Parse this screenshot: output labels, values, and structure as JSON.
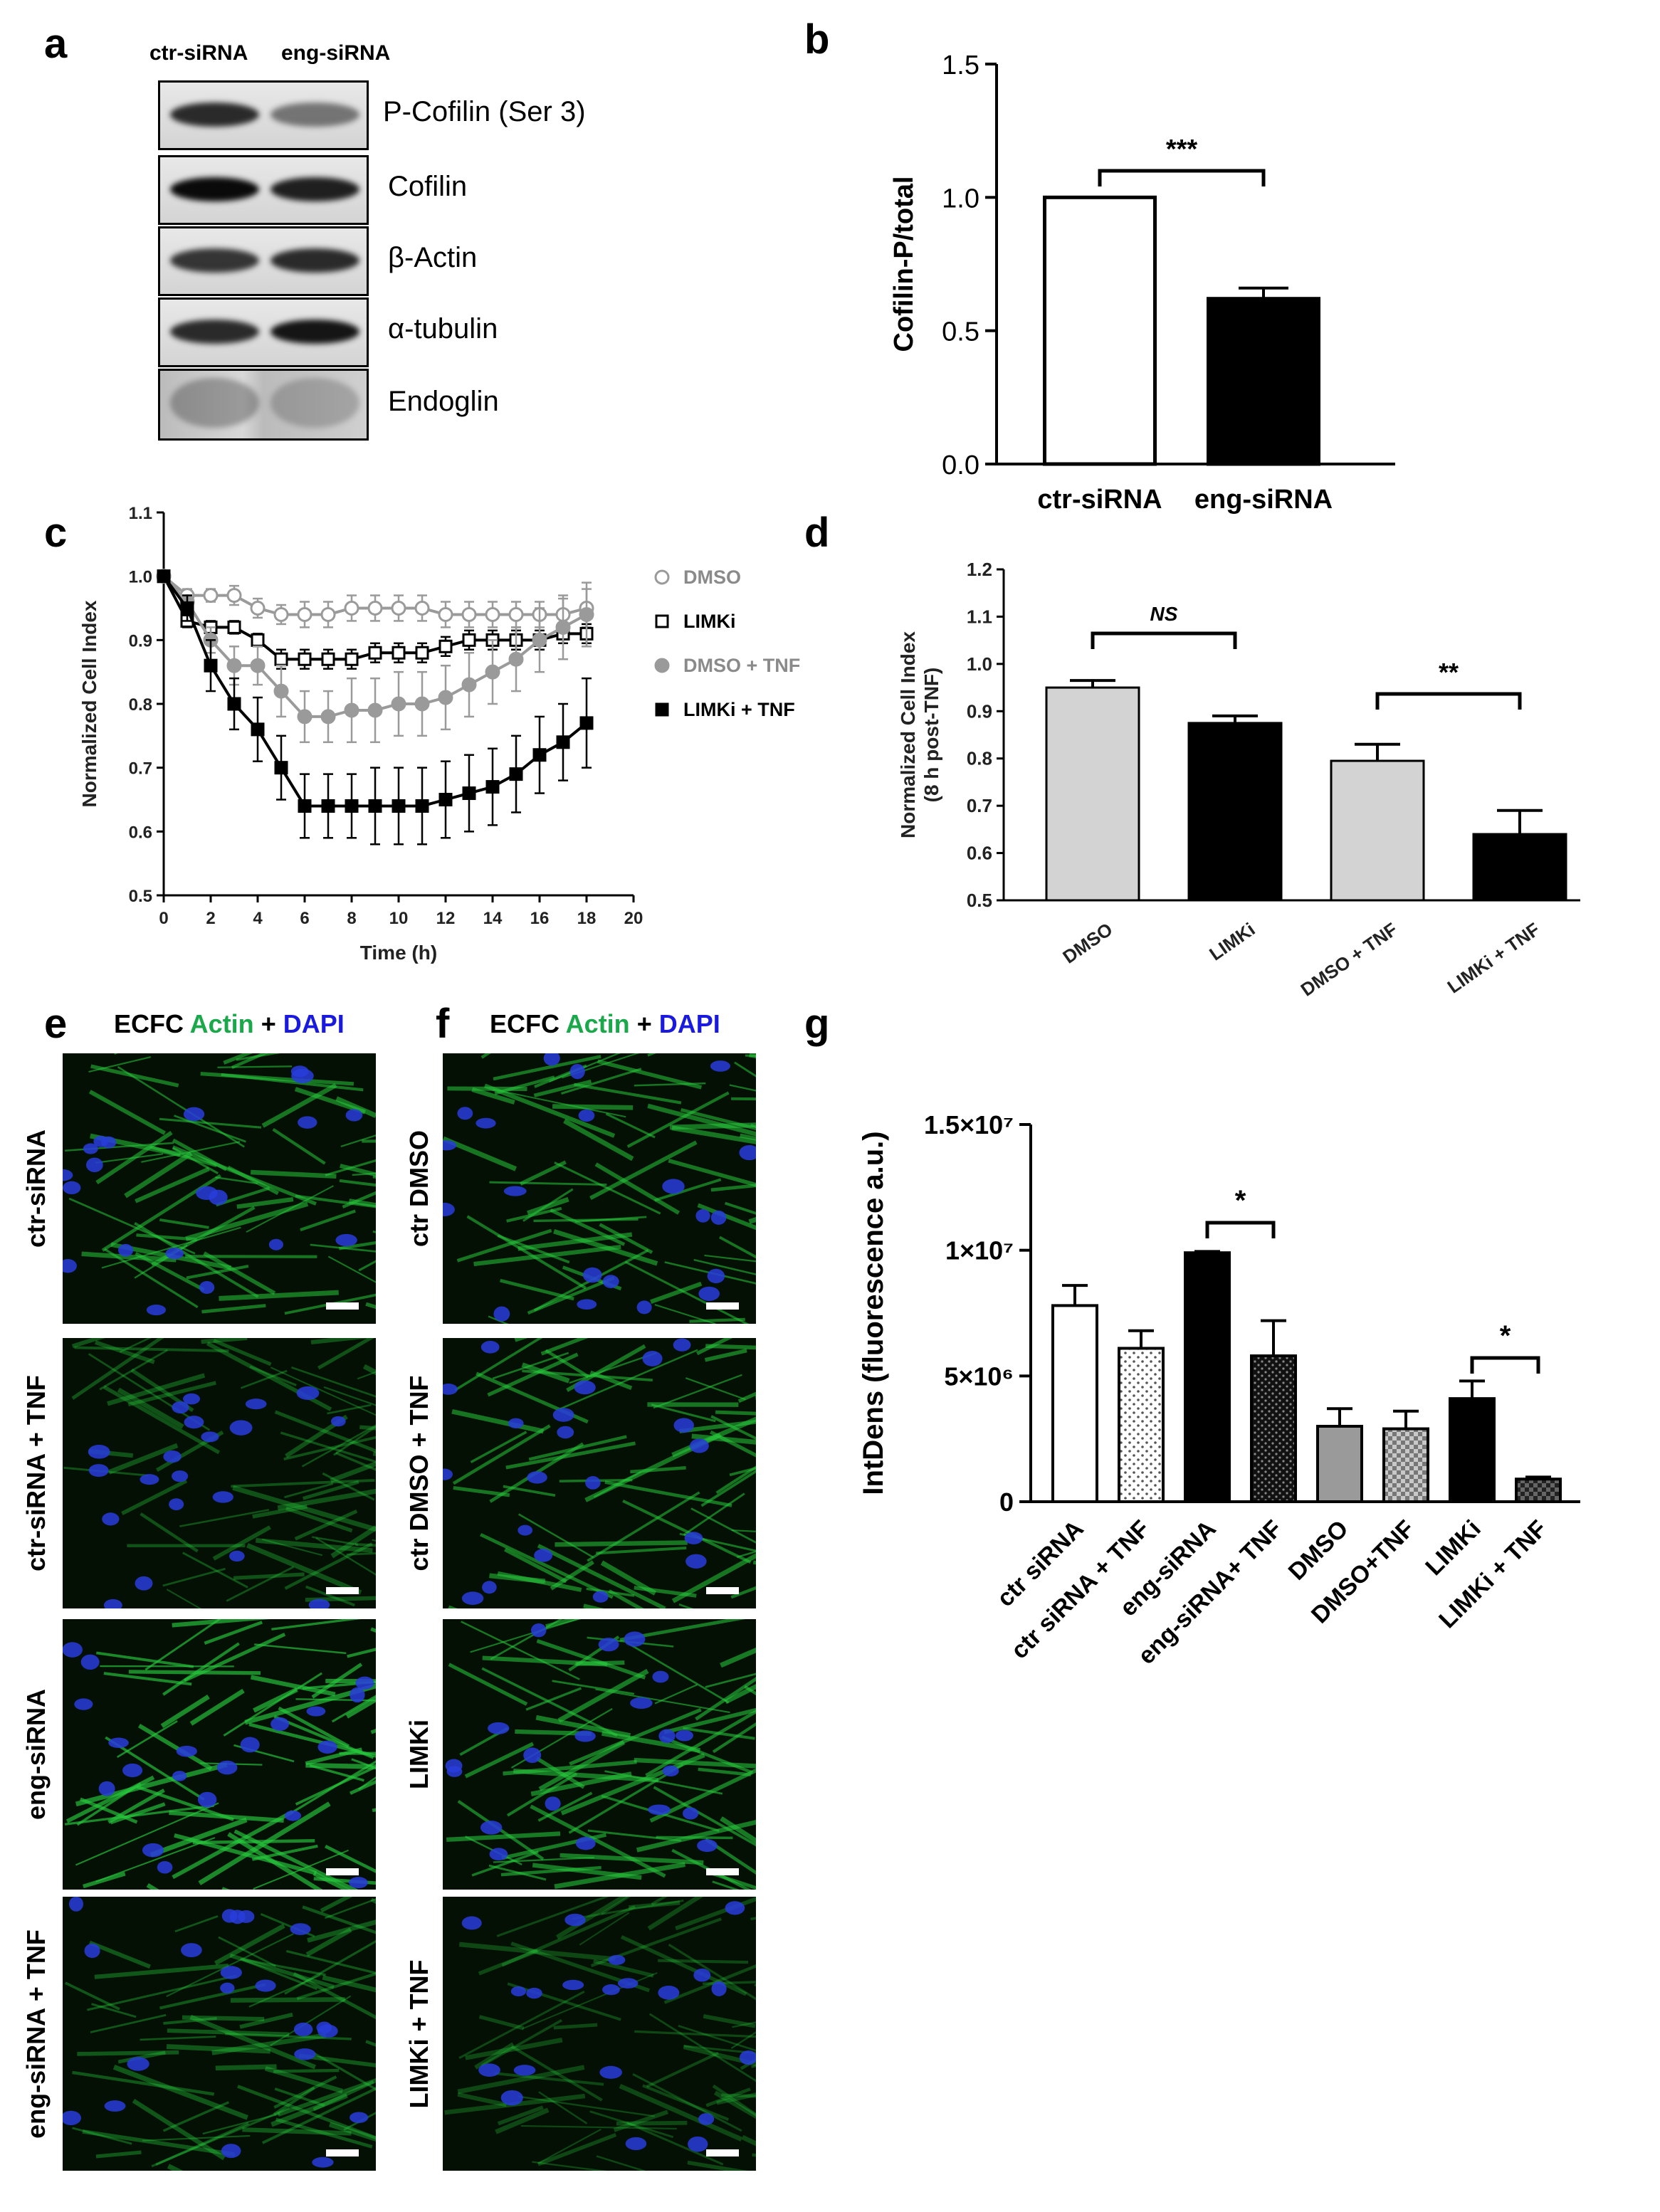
{
  "panels": {
    "a": "a",
    "b": "b",
    "c": "c",
    "d": "d",
    "e": "e",
    "f": "f",
    "g": "g"
  },
  "blot": {
    "lanes": [
      "ctr-siRNA",
      "eng-siRNA"
    ],
    "rows": [
      {
        "label": "P-Cofilin (Ser 3)"
      },
      {
        "label": "Cofilin"
      },
      {
        "label": "β-Actin"
      },
      {
        "label": "α-tubulin"
      },
      {
        "label": "Endoglin"
      }
    ]
  },
  "micro_header": {
    "prefix": "ECFC",
    "actin": "Actin",
    "plus": "+",
    "dapi": "DAPI",
    "actin_color": "#1aa84a",
    "dapi_color": "#1a1adf"
  },
  "micro_e": {
    "rows": [
      "ctr-siRNA",
      "ctr-siRNA + TNF",
      "eng-siRNA",
      "eng-siRNA + TNF"
    ]
  },
  "micro_f": {
    "rows": [
      "ctr DMSO",
      "ctr DMSO + TNF",
      "LIMKi",
      "LIMKi + TNF"
    ]
  },
  "chart_data": [
    {
      "panel": "b",
      "type": "bar",
      "categories": [
        "ctr-siRNA",
        "eng-siRNA"
      ],
      "values": [
        1.0,
        0.62
      ],
      "errors": [
        0,
        0.04
      ],
      "fills": [
        "#ffffff",
        "#000000"
      ],
      "ylabel": "Cofilin-P/total",
      "ylim": [
        0,
        1.5
      ],
      "yticks": [
        "0.0",
        "0.5",
        "1.0",
        "1.5"
      ],
      "significance": [
        {
          "from": 0,
          "to": 1,
          "label": "***"
        }
      ]
    },
    {
      "panel": "c",
      "type": "line",
      "xlabel": "Time (h)",
      "ylabel": "Normalized Cell Index",
      "xlim": [
        0,
        20
      ],
      "ylim": [
        0.5,
        1.1
      ],
      "xticks": [
        "0",
        "2",
        "4",
        "6",
        "8",
        "10",
        "12",
        "14",
        "16",
        "18",
        "20"
      ],
      "yticks": [
        "0.5",
        "0.6",
        "0.7",
        "0.8",
        "0.9",
        "1.0",
        "1.1"
      ],
      "x": [
        0,
        1,
        2,
        3,
        4,
        5,
        6,
        7,
        8,
        9,
        10,
        11,
        12,
        13,
        14,
        15,
        16,
        17,
        18
      ],
      "series": [
        {
          "name": "DMSO",
          "color": "#9a9a9a",
          "marker": "open-circle",
          "values": [
            1.0,
            0.97,
            0.97,
            0.97,
            0.95,
            0.94,
            0.94,
            0.94,
            0.95,
            0.95,
            0.95,
            0.95,
            0.94,
            0.94,
            0.94,
            0.94,
            0.94,
            0.94,
            0.95
          ],
          "errors": [
            0,
            0.01,
            0.01,
            0.015,
            0.015,
            0.015,
            0.02,
            0.02,
            0.02,
            0.02,
            0.02,
            0.02,
            0.02,
            0.02,
            0.02,
            0.02,
            0.02,
            0.025,
            0.03
          ]
        },
        {
          "name": "LIMKi",
          "color": "#000000",
          "marker": "open-square",
          "values": [
            1.0,
            0.93,
            0.92,
            0.92,
            0.9,
            0.87,
            0.87,
            0.87,
            0.87,
            0.88,
            0.88,
            0.88,
            0.89,
            0.9,
            0.9,
            0.9,
            0.9,
            0.91,
            0.91
          ],
          "errors": [
            0,
            0.01,
            0.01,
            0.01,
            0.01,
            0.015,
            0.015,
            0.015,
            0.015,
            0.015,
            0.015,
            0.015,
            0.015,
            0.015,
            0.015,
            0.015,
            0.015,
            0.015,
            0.015
          ]
        },
        {
          "name": "DMSO + TNF",
          "color": "#9a9a9a",
          "marker": "filled-circle",
          "values": [
            1.0,
            0.96,
            0.9,
            0.86,
            0.86,
            0.82,
            0.78,
            0.78,
            0.79,
            0.79,
            0.8,
            0.8,
            0.81,
            0.83,
            0.85,
            0.87,
            0.9,
            0.92,
            0.94
          ],
          "errors": [
            0,
            0.01,
            0.02,
            0.03,
            0.03,
            0.04,
            0.04,
            0.04,
            0.05,
            0.05,
            0.05,
            0.05,
            0.05,
            0.05,
            0.05,
            0.05,
            0.05,
            0.05,
            0.05
          ]
        },
        {
          "name": "LIMKi + TNF",
          "color": "#000000",
          "marker": "filled-square",
          "values": [
            1.0,
            0.95,
            0.86,
            0.8,
            0.76,
            0.7,
            0.64,
            0.64,
            0.64,
            0.64,
            0.64,
            0.64,
            0.65,
            0.66,
            0.67,
            0.69,
            0.72,
            0.74,
            0.77
          ],
          "errors": [
            0,
            0.02,
            0.04,
            0.04,
            0.05,
            0.05,
            0.05,
            0.05,
            0.05,
            0.06,
            0.06,
            0.06,
            0.06,
            0.06,
            0.06,
            0.06,
            0.06,
            0.06,
            0.07
          ]
        }
      ],
      "legend": "right"
    },
    {
      "panel": "d",
      "type": "bar",
      "categories": [
        "DMSO",
        "LIMKi",
        "DMSO + TNF",
        "LIMKi + TNF"
      ],
      "values": [
        0.95,
        0.875,
        0.795,
        0.64
      ],
      "errors": [
        0.015,
        0.015,
        0.035,
        0.05
      ],
      "fills": [
        "#d3d3d3",
        "#000000",
        "#d3d3d3",
        "#000000"
      ],
      "ylabel": "Normalized Cell Index",
      "ylabel2": "(8 h post-TNF)",
      "ylim": [
        0.5,
        1.2
      ],
      "yticks": [
        "0.5",
        "0.6",
        "0.7",
        "0.8",
        "0.9",
        "1.0",
        "1.1",
        "1.2"
      ],
      "significance": [
        {
          "from": 0,
          "to": 1,
          "label": "NS"
        },
        {
          "from": 2,
          "to": 3,
          "label": "**"
        }
      ]
    },
    {
      "panel": "g",
      "type": "bar",
      "categories": [
        "ctr siRNA",
        "ctr siRNA + TNF",
        "eng-siRNA",
        "eng-siRNA+ TNF",
        "DMSO",
        "DMSO+TNF",
        "LIMKi",
        "LIMKi + TNF"
      ],
      "values": [
        7800000,
        6100000,
        9900000,
        5800000,
        3000000,
        2900000,
        4100000,
        900000
      ],
      "errors": [
        800000,
        700000,
        50000,
        1400000,
        700000,
        700000,
        700000,
        80000
      ],
      "fills": [
        "#ffffff",
        "dots",
        "#000000",
        "dots-dark",
        "#9a9a9a",
        "checker",
        "#000000",
        "checker-dark"
      ],
      "ylabel": "IntDens (fluorescence a.u.)",
      "ylim": [
        0,
        15000000
      ],
      "yticks": [
        "0",
        "5×10⁶",
        "1×10⁷",
        "1.5×10⁷"
      ],
      "significance": [
        {
          "from": 2,
          "to": 3,
          "label": "*"
        },
        {
          "from": 6,
          "to": 7,
          "label": "*"
        }
      ]
    }
  ]
}
